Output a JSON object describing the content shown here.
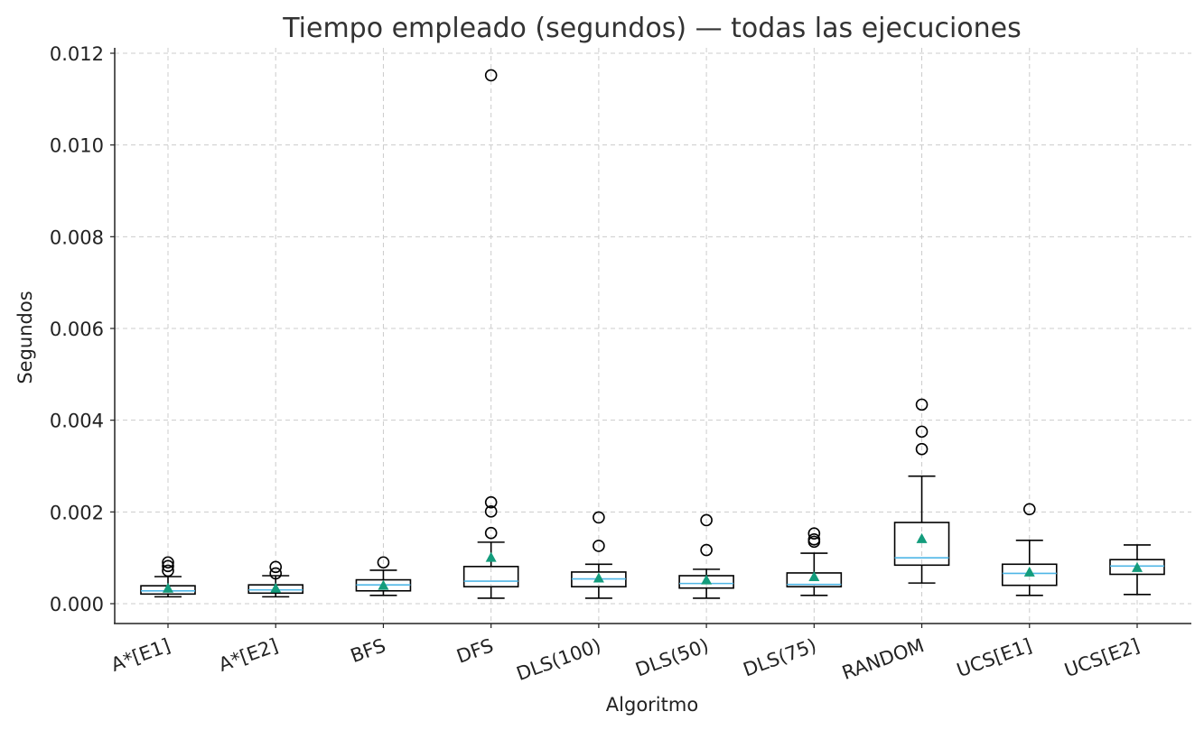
{
  "chart_data": {
    "type": "boxplot",
    "title": "Tiempo empleado (segundos) — todas las ejecuciones",
    "xlabel": "Algoritmo",
    "ylabel": "Segundos",
    "ylim": [
      -0.00044,
      0.0122
    ],
    "yticks": [
      "0.000",
      "0.002",
      "0.004",
      "0.006",
      "0.008",
      "0.010",
      "0.012"
    ],
    "ytick_values": [
      0,
      0.002,
      0.004,
      0.006,
      0.008,
      0.01,
      0.012
    ],
    "grid": true,
    "colors": {
      "median": "#4fb6e6",
      "mean": "#139c7c",
      "box": "#000000"
    },
    "categories": [
      "A*[E1]",
      "A*[E2]",
      "BFS",
      "DFS",
      "DLS(100)",
      "DLS(50)",
      "DLS(75)",
      "RANDOM",
      "UCS[E1]",
      "UCS[E2]"
    ],
    "stats": [
      {
        "whislo": 0.00015,
        "q1": 0.00021,
        "med": 0.00028,
        "q3": 0.00039,
        "whishi": 0.00059,
        "mean": 0.00034,
        "fliers": [
          0.00072,
          0.00082,
          0.0009
        ]
      },
      {
        "whislo": 0.00015,
        "q1": 0.00023,
        "med": 0.0003,
        "q3": 0.00041,
        "whishi": 0.00061,
        "mean": 0.00034,
        "fliers": [
          0.00066,
          0.0008
        ]
      },
      {
        "whislo": 0.00018,
        "q1": 0.00028,
        "med": 0.00041,
        "q3": 0.00052,
        "whishi": 0.00073,
        "mean": 0.0004,
        "fliers": [
          0.0009
        ]
      },
      {
        "whislo": 0.00012,
        "q1": 0.00037,
        "med": 0.00049,
        "q3": 0.00081,
        "whishi": 0.00134,
        "mean": 0.00101,
        "fliers": [
          0.00154,
          0.00201,
          0.00221,
          0.01152
        ]
      },
      {
        "whislo": 0.00012,
        "q1": 0.00037,
        "med": 0.00054,
        "q3": 0.00069,
        "whishi": 0.00086,
        "mean": 0.00056,
        "fliers": [
          0.00126,
          0.00188
        ]
      },
      {
        "whislo": 0.00012,
        "q1": 0.00034,
        "med": 0.00044,
        "q3": 0.00061,
        "whishi": 0.00075,
        "mean": 0.00052,
        "fliers": [
          0.00117,
          0.00182
        ]
      },
      {
        "whislo": 0.00018,
        "q1": 0.00037,
        "med": 0.00042,
        "q3": 0.00067,
        "whishi": 0.0011,
        "mean": 0.00059,
        "fliers": [
          0.00135,
          0.0014,
          0.00153
        ]
      },
      {
        "whislo": 0.00045,
        "q1": 0.00084,
        "med": 0.001,
        "q3": 0.00177,
        "whishi": 0.00278,
        "mean": 0.00142,
        "fliers": [
          0.00337,
          0.00375,
          0.00434
        ]
      },
      {
        "whislo": 0.00018,
        "q1": 0.0004,
        "med": 0.00066,
        "q3": 0.00086,
        "whishi": 0.00138,
        "mean": 0.00069,
        "fliers": [
          0.00206
        ]
      },
      {
        "whislo": 0.0002,
        "q1": 0.00064,
        "med": 0.00082,
        "q3": 0.00096,
        "whishi": 0.00128,
        "mean": 0.00079,
        "fliers": []
      }
    ]
  }
}
